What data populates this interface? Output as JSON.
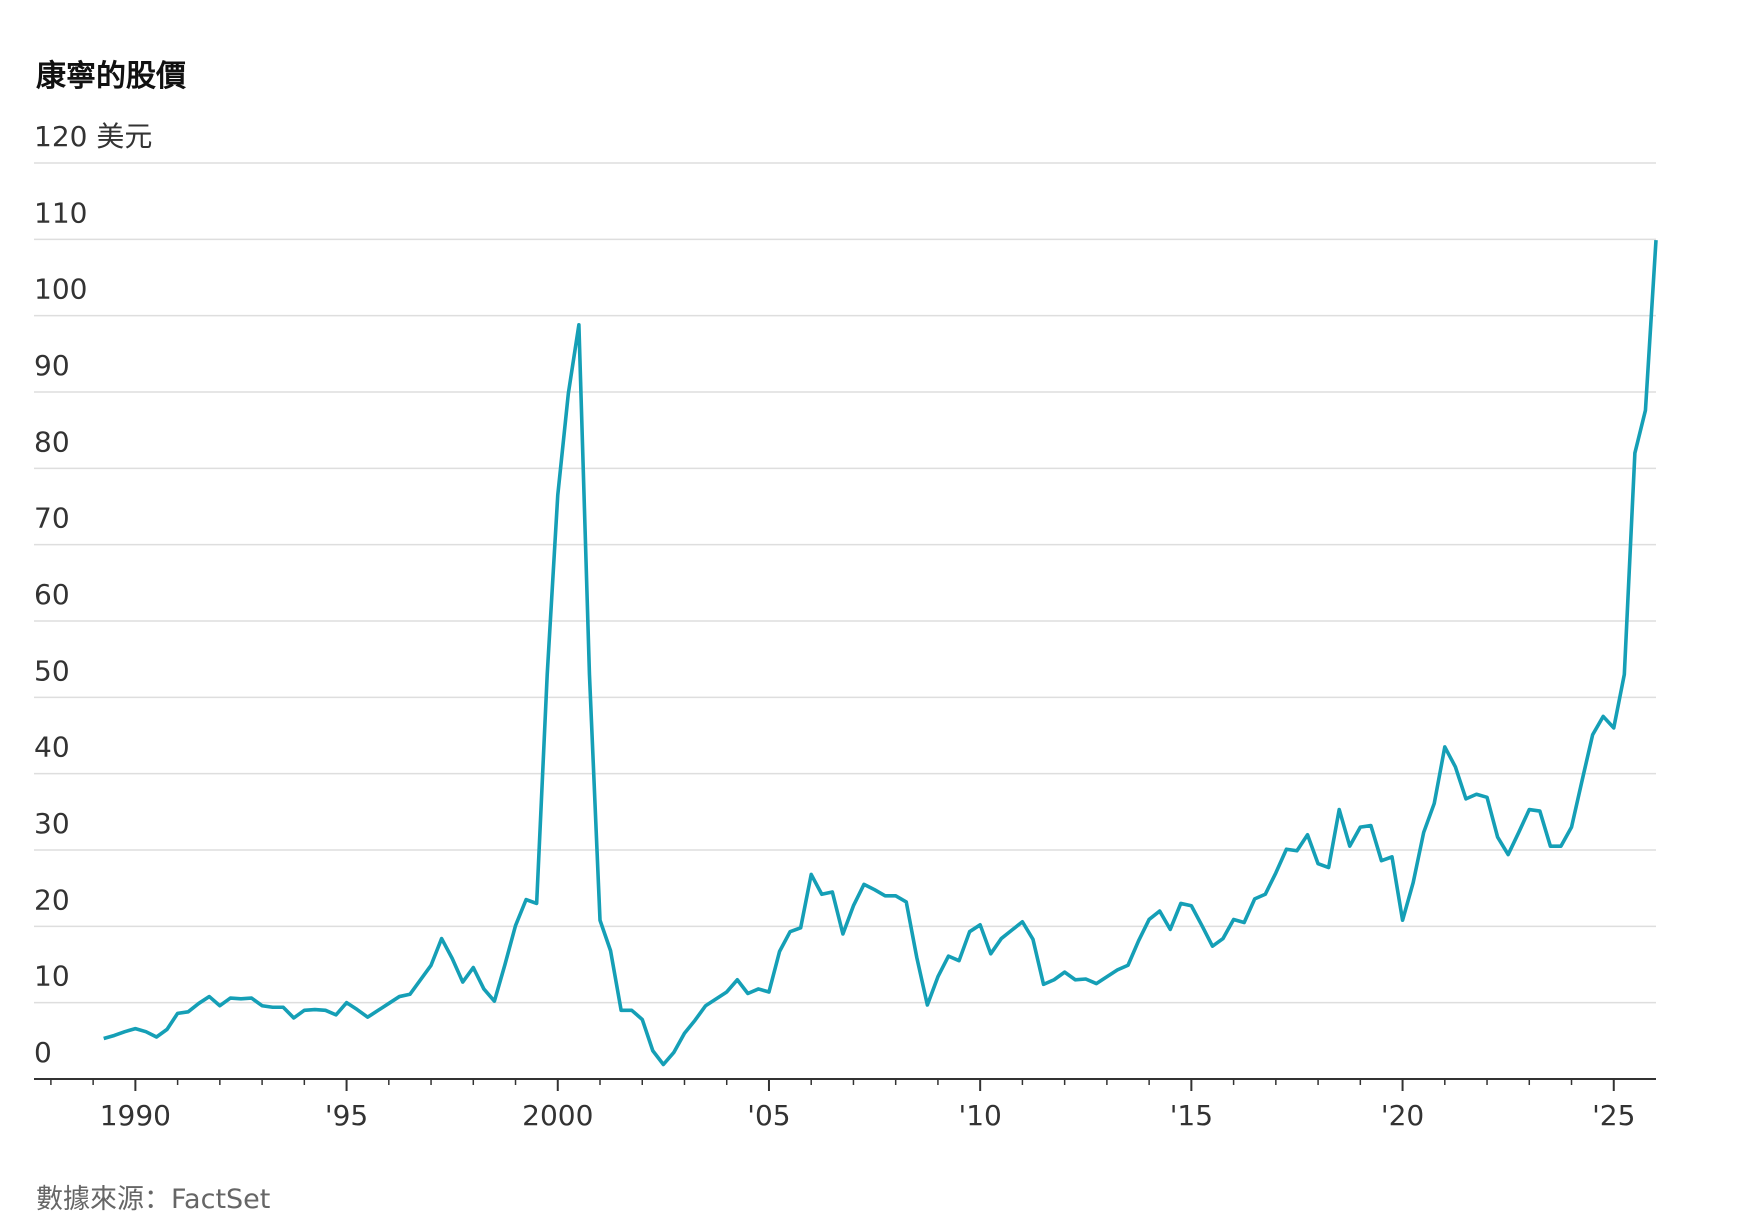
{
  "chart_data": {
    "type": "line",
    "title": "康寧的股價",
    "source": "數據來源：FactSet",
    "xlim": [
      1987.6,
      2026
    ],
    "ylim": [
      0,
      120
    ],
    "yticks": [
      0,
      10,
      20,
      30,
      40,
      50,
      60,
      70,
      80,
      90,
      100,
      110,
      {
        "value": 120,
        "label": "120 美元"
      }
    ],
    "xticks": [
      1990,
      {
        "value": 1995,
        "label": "'95"
      },
      2000,
      {
        "value": 2005,
        "label": "'05"
      },
      {
        "value": 2010,
        "label": "'10"
      },
      {
        "value": 2015,
        "label": "'15"
      },
      {
        "value": 2020,
        "label": "'20"
      },
      {
        "value": 2025,
        "label": "'25"
      }
    ],
    "xminorticks": [
      1988,
      1989,
      1991,
      1992,
      1993,
      1994,
      1996,
      1997,
      1998,
      1999,
      2001,
      2002,
      2003,
      2004,
      2006,
      2007,
      2008,
      2009,
      2011,
      2012,
      2013,
      2014,
      2016,
      2017,
      2018,
      2019,
      2021,
      2022,
      2023,
      2024
    ],
    "grid": true,
    "x": [
      1989.25,
      1989.5,
      1989.75,
      1990,
      1990.25,
      1990.5,
      1990.75,
      1991,
      1991.25,
      1991.5,
      1991.75,
      1992,
      1992.25,
      1992.5,
      1992.75,
      1993,
      1993.25,
      1993.5,
      1993.75,
      1994,
      1994.25,
      1994.5,
      1994.75,
      1995,
      1995.25,
      1995.5,
      1995.75,
      1996,
      1996.25,
      1996.5,
      1996.75,
      1997,
      1997.25,
      1997.5,
      1997.75,
      1998,
      1998.25,
      1998.5,
      1998.75,
      1999,
      1999.25,
      1999.5,
      1999.75,
      2000,
      2000.25,
      2000.5,
      2000.75,
      2001,
      2001.25,
      2001.5,
      2001.75,
      2002,
      2002.25,
      2002.5,
      2002.75,
      2003,
      2003.25,
      2003.5,
      2003.75,
      2004,
      2004.25,
      2004.5,
      2004.75,
      2005,
      2005.25,
      2005.5,
      2005.75,
      2006,
      2006.25,
      2006.5,
      2006.75,
      2007,
      2007.25,
      2007.5,
      2007.75,
      2008,
      2008.25,
      2008.5,
      2008.75,
      2009,
      2009.25,
      2009.5,
      2009.75,
      2010,
      2010.25,
      2010.5,
      2010.75,
      2011,
      2011.25,
      2011.5,
      2011.75,
      2012,
      2012.25,
      2012.5,
      2012.75,
      2013,
      2013.25,
      2013.5,
      2013.75,
      2014,
      2014.25,
      2014.5,
      2014.75,
      2015,
      2015.25,
      2015.5,
      2015.75,
      2016,
      2016.25,
      2016.5,
      2016.75,
      2017,
      2017.25,
      2017.5,
      2017.75,
      2018,
      2018.25,
      2018.5,
      2018.75,
      2019,
      2019.25,
      2019.5,
      2019.75,
      2020,
      2020.25,
      2020.5,
      2020.75,
      2021,
      2021.25,
      2021.5,
      2021.75,
      2022,
      2022.25,
      2022.5,
      2022.75,
      2023,
      2023.25,
      2023.5,
      2023.75,
      2024,
      2024.25,
      2024.5,
      2024.75,
      2025,
      2025.25,
      2025.5,
      2025.75,
      2026
    ],
    "series": [
      {
        "name": "康寧",
        "color": "#159fb6",
        "values": [
          5.3,
          5.7,
          6.2,
          6.6,
          6.2,
          5.5,
          6.5,
          8.6,
          8.8,
          9.9,
          10.8,
          9.6,
          10.6,
          10.5,
          10.6,
          9.6,
          9.4,
          9.4,
          8.0,
          9.0,
          9.1,
          9.0,
          8.4,
          10.0,
          9.1,
          8.1,
          9.0,
          9.9,
          10.8,
          11.1,
          13.0,
          14.9,
          18.4,
          15.8,
          12.7,
          14.6,
          11.8,
          10.2,
          15.0,
          20.1,
          23.5,
          23.0,
          53,
          76.5,
          89.8,
          98.8,
          53,
          20.8,
          16.8,
          9.0,
          9.0,
          7.8,
          3.7,
          1.9,
          3.5,
          6.0,
          7.7,
          9.6,
          10.5,
          11.4,
          13.0,
          11.2,
          11.8,
          11.4,
          16.7,
          19.3,
          19.8,
          26.8,
          24.2,
          24.5,
          19.0,
          22.7,
          25.5,
          24.8,
          24.0,
          24.0,
          23.2,
          15.9,
          9.7,
          13.4,
          16.1,
          15.5,
          19.3,
          20.2,
          16.4,
          18.4,
          19.5,
          20.6,
          18.3,
          12.4,
          13.0,
          14.0,
          13.0,
          13.1,
          12.5,
          13.4,
          14.3,
          14.9,
          18.1,
          20.9,
          22.0,
          19.6,
          23.0,
          22.7,
          20.1,
          17.4,
          18.4,
          20.9,
          20.5,
          23.6,
          24.2,
          27.0,
          30.1,
          29.9,
          32.0,
          28.2,
          27.7,
          35.3,
          30.5,
          33.0,
          33.2,
          28.6,
          29.1,
          20.8,
          25.7,
          32.3,
          36.1,
          43.5,
          40.9,
          36.7,
          37.3,
          36.9,
          31.7,
          29.4,
          32.3,
          35.3,
          35.1,
          30.5,
          30.5,
          33.0,
          39.1,
          45.1,
          47.5,
          46.0,
          53.0,
          82.0,
          87.6,
          109.9
        ]
      }
    ]
  }
}
